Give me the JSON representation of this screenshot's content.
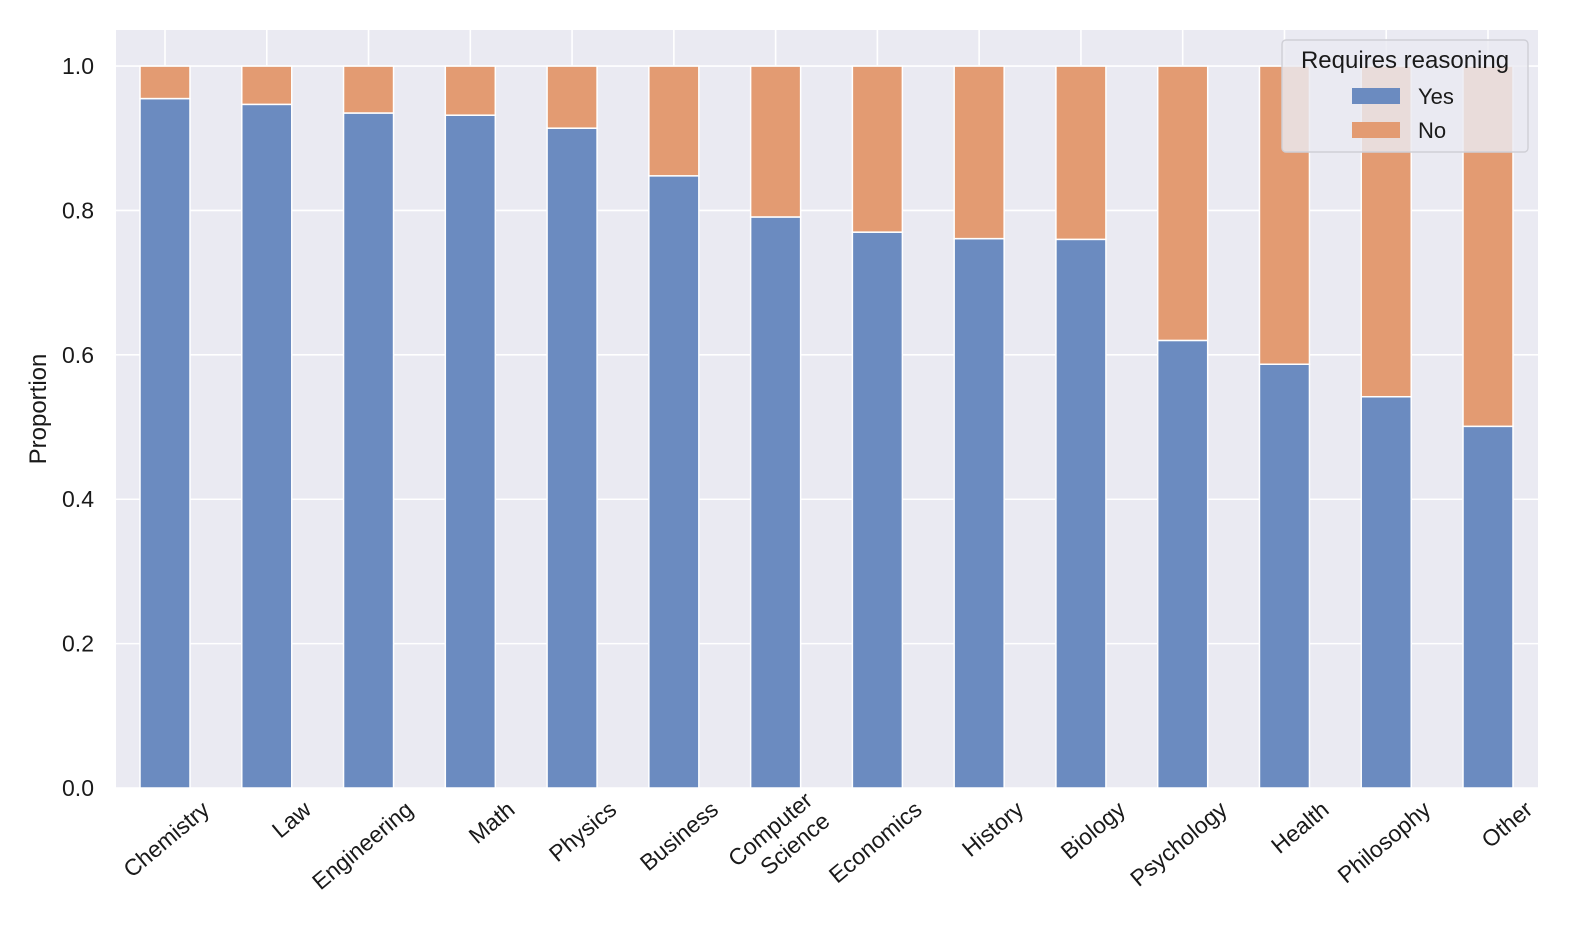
{
  "chart_data": {
    "type": "bar",
    "stacked": true,
    "title": "",
    "xlabel": "",
    "ylabel": "Proportion",
    "ylim": [
      0,
      1.05
    ],
    "yticks": [
      "0.0",
      "0.2",
      "0.4",
      "0.6",
      "0.8",
      "1.0"
    ],
    "grid": true,
    "categories": [
      "Chemistry",
      "Law",
      "Engineering",
      "Math",
      "Physics",
      "Business",
      "Computer\nScience",
      "Economics",
      "History",
      "Biology",
      "Psychology",
      "Health",
      "Philosophy",
      "Other"
    ],
    "series": [
      {
        "name": "Yes",
        "color": "#6b8bc0",
        "values": [
          0.955,
          0.947,
          0.935,
          0.932,
          0.914,
          0.848,
          0.791,
          0.77,
          0.761,
          0.76,
          0.62,
          0.587,
          0.542,
          0.501
        ]
      },
      {
        "name": "No",
        "color": "#e39b72",
        "values": [
          0.045,
          0.053,
          0.065,
          0.068,
          0.086,
          0.152,
          0.209,
          0.23,
          0.239,
          0.24,
          0.38,
          0.413,
          0.458,
          0.499
        ]
      }
    ],
    "legend": {
      "title": "Requires reasoning",
      "position": "top-right"
    },
    "colors": {
      "plot_background": "#eaeaf2",
      "grid": "#ffffff"
    }
  }
}
